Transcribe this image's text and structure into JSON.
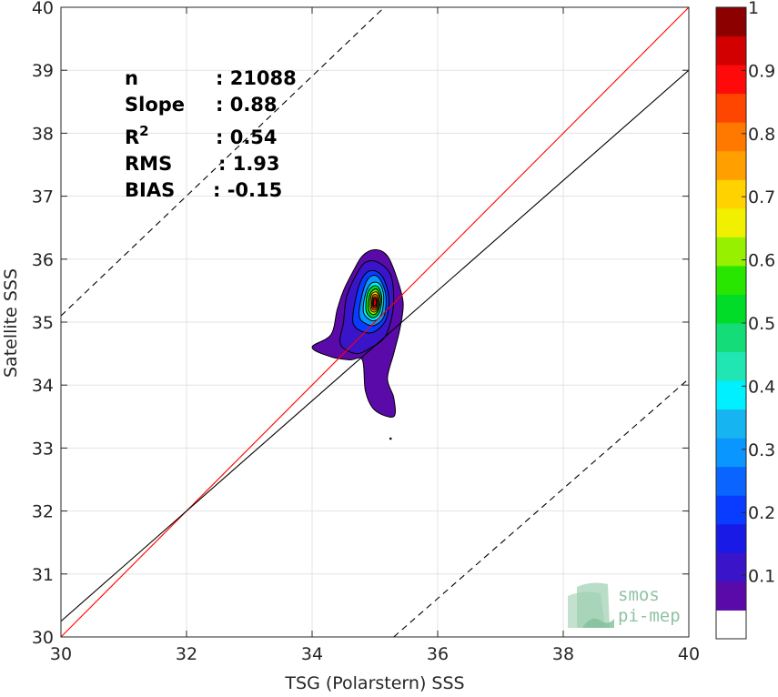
{
  "chart_data": {
    "type": "contour-density-scatter",
    "xlabel": "TSG (Polarstern) SSS",
    "ylabel": "Satellite SSS",
    "xlim": [
      30,
      40
    ],
    "ylim": [
      30,
      40
    ],
    "xticks": [
      30,
      32,
      34,
      36,
      38,
      40
    ],
    "yticks": [
      30,
      31,
      32,
      33,
      34,
      35,
      36,
      37,
      38,
      39,
      40
    ],
    "grid": true,
    "stats": [
      {
        "label": "n",
        "value": ": 21088"
      },
      {
        "label": "Slope",
        "value": ": 0.88"
      },
      {
        "label": "R",
        "sup": "2",
        "value": ": 0.54"
      },
      {
        "label": "RMS",
        "value": ": 1.93"
      },
      {
        "label": "BIAS",
        "value": ": -0.15"
      }
    ],
    "lines": [
      {
        "kind": "identity",
        "color": "#ff0000",
        "style": "solid",
        "x": [
          30,
          40
        ],
        "y": [
          30,
          40
        ]
      },
      {
        "kind": "fit",
        "color": "#000000",
        "style": "solid",
        "x": [
          30,
          40
        ],
        "y": [
          30.25,
          39.0
        ]
      },
      {
        "kind": "upper-bound",
        "color": "#000000",
        "style": "dashed",
        "x": [
          30,
          35.15
        ],
        "y": [
          35.1,
          40
        ]
      },
      {
        "kind": "lower-bound",
        "color": "#000000",
        "style": "dashed",
        "x": [
          35.3,
          40
        ],
        "y": [
          30,
          34.1
        ]
      }
    ],
    "density_peak": {
      "x": 35.0,
      "y": 35.3
    },
    "contours": [
      {
        "level": 0.05,
        "outline": [
          [
            34.0,
            34.6
          ],
          [
            34.3,
            34.8
          ],
          [
            34.4,
            35.2
          ],
          [
            34.5,
            35.5
          ],
          [
            34.65,
            35.8
          ],
          [
            34.8,
            36.05
          ],
          [
            35.0,
            36.15
          ],
          [
            35.2,
            36.05
          ],
          [
            35.35,
            35.7
          ],
          [
            35.45,
            35.3
          ],
          [
            35.4,
            34.9
          ],
          [
            35.3,
            34.5
          ],
          [
            35.2,
            34.1
          ],
          [
            35.3,
            33.8
          ],
          [
            35.3,
            33.5
          ],
          [
            35.0,
            33.6
          ],
          [
            34.85,
            33.9
          ],
          [
            34.8,
            34.4
          ],
          [
            34.6,
            34.4
          ],
          [
            34.3,
            34.45
          ]
        ]
      },
      {
        "level": 0.1,
        "outline": [
          [
            34.45,
            34.65
          ],
          [
            34.5,
            35.0
          ],
          [
            34.55,
            35.4
          ],
          [
            34.7,
            35.75
          ],
          [
            34.85,
            35.95
          ],
          [
            35.05,
            35.95
          ],
          [
            35.25,
            35.75
          ],
          [
            35.3,
            35.35
          ],
          [
            35.25,
            35.0
          ],
          [
            35.15,
            34.75
          ],
          [
            34.95,
            34.6
          ],
          [
            34.7,
            34.5
          ]
        ]
      },
      {
        "level": 0.2,
        "outline": [
          [
            34.65,
            35.0
          ],
          [
            34.7,
            35.4
          ],
          [
            34.8,
            35.7
          ],
          [
            34.95,
            35.82
          ],
          [
            35.12,
            35.72
          ],
          [
            35.22,
            35.4
          ],
          [
            35.18,
            35.05
          ],
          [
            35.0,
            34.85
          ],
          [
            34.8,
            34.85
          ]
        ]
      },
      {
        "level": 0.3,
        "outline": [
          [
            34.75,
            35.1
          ],
          [
            34.8,
            35.45
          ],
          [
            34.9,
            35.7
          ],
          [
            35.05,
            35.72
          ],
          [
            35.17,
            35.45
          ],
          [
            35.15,
            35.1
          ],
          [
            35.0,
            34.95
          ],
          [
            34.85,
            34.98
          ]
        ]
      },
      {
        "level": 0.4,
        "outline": [
          [
            34.82,
            35.15
          ],
          [
            34.85,
            35.45
          ],
          [
            34.95,
            35.62
          ],
          [
            35.08,
            35.6
          ],
          [
            35.14,
            35.4
          ],
          [
            35.1,
            35.12
          ],
          [
            34.97,
            35.02
          ]
        ]
      },
      {
        "level": 0.5,
        "outline": [
          [
            34.86,
            35.18
          ],
          [
            34.88,
            35.45
          ],
          [
            34.97,
            35.57
          ],
          [
            35.06,
            35.55
          ],
          [
            35.11,
            35.38
          ],
          [
            35.07,
            35.15
          ],
          [
            34.96,
            35.07
          ]
        ]
      },
      {
        "level": 0.6,
        "outline": [
          [
            34.9,
            35.2
          ],
          [
            34.92,
            35.43
          ],
          [
            34.99,
            35.52
          ],
          [
            35.05,
            35.5
          ],
          [
            35.09,
            35.36
          ],
          [
            35.05,
            35.18
          ],
          [
            34.97,
            35.12
          ]
        ]
      },
      {
        "level": 0.7,
        "outline": [
          [
            34.93,
            35.22
          ],
          [
            34.94,
            35.42
          ],
          [
            35.0,
            35.48
          ],
          [
            35.05,
            35.45
          ],
          [
            35.07,
            35.33
          ],
          [
            35.04,
            35.2
          ],
          [
            34.98,
            35.16
          ]
        ]
      },
      {
        "level": 0.8,
        "outline": [
          [
            34.95,
            35.23
          ],
          [
            34.96,
            35.4
          ],
          [
            35.0,
            35.44
          ],
          [
            35.04,
            35.41
          ],
          [
            35.05,
            35.31
          ],
          [
            35.03,
            35.22
          ],
          [
            34.99,
            35.19
          ]
        ]
      },
      {
        "level": 0.9,
        "outline": [
          [
            34.97,
            35.24
          ],
          [
            34.97,
            35.37
          ],
          [
            35.0,
            35.4
          ],
          [
            35.03,
            35.37
          ],
          [
            35.03,
            35.28
          ],
          [
            35.01,
            35.23
          ]
        ]
      },
      {
        "level": 0.95,
        "outline": [
          [
            34.98,
            35.26
          ],
          [
            34.98,
            35.35
          ],
          [
            35.0,
            35.37
          ],
          [
            35.02,
            35.35
          ],
          [
            35.02,
            35.28
          ]
        ]
      }
    ],
    "outlier_point": {
      "x": 35.25,
      "y": 33.15
    },
    "colorbar": {
      "range": [
        0,
        1
      ],
      "ticks": [
        0.1,
        0.2,
        0.3,
        0.4,
        0.5,
        0.6,
        0.7,
        0.8,
        0.9,
        1
      ],
      "tick_labels": [
        "0.1",
        "0.2",
        "0.3",
        "0.4",
        "0.5",
        "0.6",
        "0.7",
        "0.8",
        "0.9",
        "1"
      ],
      "colors": [
        "#ffffff",
        "#5a0aa8",
        "#3a14c8",
        "#1a1ae6",
        "#0a3cff",
        "#0a64ff",
        "#0a96ff",
        "#16b4f0",
        "#00f0ff",
        "#20e6b4",
        "#14dc78",
        "#00dc28",
        "#28e600",
        "#96f000",
        "#f0f000",
        "#ffd200",
        "#ffa000",
        "#ff7800",
        "#ff4600",
        "#ff0a0a",
        "#d20000",
        "#8c0000"
      ]
    }
  },
  "logo": {
    "line1": "smos",
    "line2": "pi-mep"
  }
}
